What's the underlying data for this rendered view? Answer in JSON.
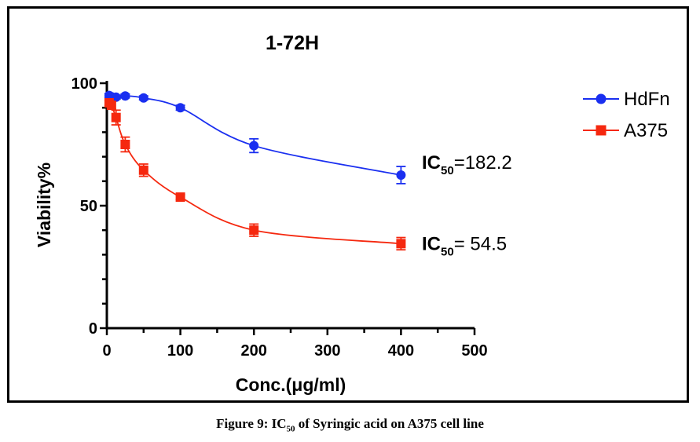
{
  "chart_data": {
    "type": "line",
    "title": "1-72H",
    "xlabel": "Conc.(μg/ml)",
    "ylabel": "Viability%",
    "xlim": [
      0,
      500
    ],
    "ylim": [
      0,
      100
    ],
    "xticks": [
      0,
      100,
      200,
      300,
      400,
      500
    ],
    "yticks": [
      0,
      50,
      100
    ],
    "grid": false,
    "legend_position": "top-right",
    "series": [
      {
        "name": "HdFn",
        "color": "#1a2ff0",
        "marker": "circle",
        "x": [
          3.125,
          6.25,
          12.5,
          25,
          50,
          100,
          200,
          400
        ],
        "y": [
          95.0,
          94.5,
          94.3,
          94.8,
          94.0,
          90.0,
          74.5,
          62.5
        ],
        "err": [
          0.8,
          0.8,
          0.8,
          0.8,
          0.8,
          1.0,
          2.8,
          3.5
        ],
        "ic50_label": "IC",
        "ic50_sub": "50",
        "ic50_value": "=182.2"
      },
      {
        "name": "A375",
        "color": "#f5280f",
        "marker": "square",
        "x": [
          3.125,
          6.25,
          12.5,
          25,
          50,
          100,
          200,
          400
        ],
        "y": [
          92.0,
          91.0,
          86.0,
          75.0,
          64.5,
          53.5,
          40.0,
          34.5
        ],
        "err": [
          1.0,
          1.5,
          3.0,
          3.0,
          2.5,
          1.0,
          2.5,
          2.5
        ],
        "ic50_label": "IC",
        "ic50_sub": "50",
        "ic50_value": "= 54.5"
      }
    ]
  },
  "caption": {
    "prefix": "Figure 9: IC",
    "sub": "50",
    "suffix": " of Syringic acid on A375 cell line"
  }
}
